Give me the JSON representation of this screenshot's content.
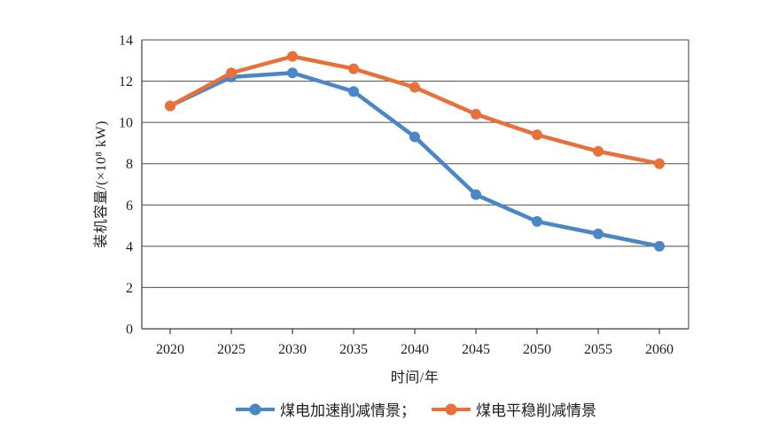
{
  "chart_data": {
    "type": "line",
    "title": "",
    "x": [
      2020,
      2025,
      2030,
      2035,
      2040,
      2045,
      2050,
      2055,
      2060
    ],
    "series": [
      {
        "name": "煤电加速削减情景",
        "color": "#4a87c6",
        "values": [
          10.8,
          12.2,
          12.4,
          11.5,
          9.3,
          6.5,
          5.2,
          4.6,
          4.0
        ]
      },
      {
        "name": "煤电平稳削减情景",
        "color": "#e8713b",
        "values": [
          10.8,
          12.4,
          13.2,
          12.6,
          11.7,
          10.4,
          9.4,
          8.6,
          8.0
        ]
      }
    ],
    "xlabel": "时间/年",
    "ylabel": "装机容量/(×10⁸ kW)",
    "ylim": [
      0,
      14
    ],
    "ytick_step": 2,
    "yticks": [
      0,
      2,
      4,
      6,
      8,
      10,
      12,
      14
    ],
    "grid": "horizontal",
    "legend_position": "bottom",
    "legend_labels": [
      "煤电加速削减情景；",
      "煤电平稳削减情景"
    ],
    "axis_color": "#3c3c3c",
    "grid_color": "#4d4d4d"
  }
}
